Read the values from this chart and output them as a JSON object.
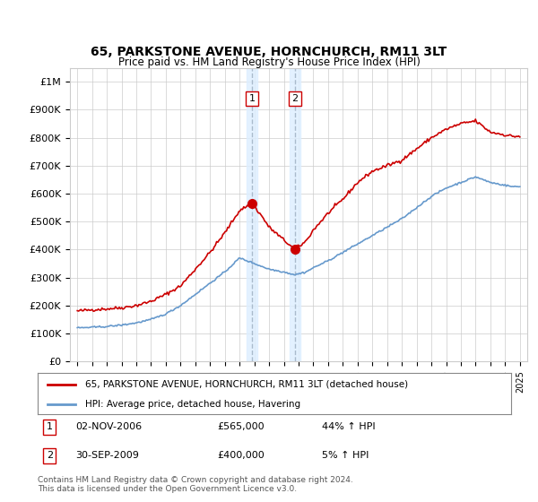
{
  "title": "65, PARKSTONE AVENUE, HORNCHURCH, RM11 3LT",
  "subtitle": "Price paid vs. HM Land Registry's House Price Index (HPI)",
  "ylim": [
    0,
    1050000
  ],
  "yticks": [
    0,
    100000,
    200000,
    300000,
    400000,
    500000,
    600000,
    700000,
    800000,
    900000,
    1000000
  ],
  "ytick_labels": [
    "£0",
    "£100K",
    "£200K",
    "£300K",
    "£400K",
    "£500K",
    "£600K",
    "£700K",
    "£800K",
    "£900K",
    "£1M"
  ],
  "background_color": "#ffffff",
  "grid_color": "#cccccc",
  "sale1_t": 11.83,
  "sale1_value": 565000,
  "sale2_t": 14.75,
  "sale2_value": 400000,
  "marker_color": "#cc0000",
  "hpi_color": "#6699cc",
  "price_color": "#cc0000",
  "shade_color": "#ddeeff",
  "vline_color": "#aabbcc",
  "legend_entries": [
    "65, PARKSTONE AVENUE, HORNCHURCH, RM11 3LT (detached house)",
    "HPI: Average price, detached house, Havering"
  ],
  "annot1_date": "02-NOV-2006",
  "annot1_price": "£565,000",
  "annot1_hpi": "44% ↑ HPI",
  "annot2_date": "30-SEP-2009",
  "annot2_price": "£400,000",
  "annot2_hpi": "5% ↑ HPI",
  "footer": "Contains HM Land Registry data © Crown copyright and database right 2024.\nThis data is licensed under the Open Government Licence v3.0.",
  "start_year": 1995,
  "end_year": 2025,
  "red_key_t": [
    0,
    1,
    2,
    3,
    4,
    5,
    6,
    7,
    8,
    9,
    10,
    11,
    11.83,
    12.5,
    13,
    14.75,
    15.5,
    16,
    17,
    18,
    19,
    20,
    21,
    22,
    23,
    24,
    25,
    26,
    27,
    28,
    29,
    29.5
  ],
  "red_key_v": [
    180000,
    185000,
    188000,
    192000,
    200000,
    215000,
    240000,
    270000,
    330000,
    390000,
    460000,
    540000,
    565000,
    520000,
    480000,
    400000,
    430000,
    470000,
    530000,
    580000,
    640000,
    680000,
    700000,
    720000,
    760000,
    800000,
    830000,
    850000,
    860000,
    820000,
    810000,
    805000
  ],
  "blue_key_t": [
    0,
    1,
    2,
    3,
    4,
    5,
    6,
    7,
    8,
    9,
    10,
    11,
    12,
    13,
    14,
    14.75,
    15.5,
    16,
    17,
    18,
    19,
    20,
    21,
    22,
    23,
    24,
    25,
    26,
    27,
    28,
    29,
    29.5
  ],
  "blue_key_v": [
    120000,
    122000,
    125000,
    130000,
    138000,
    150000,
    170000,
    200000,
    240000,
    280000,
    320000,
    370000,
    350000,
    330000,
    320000,
    310000,
    320000,
    335000,
    360000,
    390000,
    420000,
    450000,
    480000,
    510000,
    550000,
    590000,
    620000,
    640000,
    660000,
    640000,
    630000,
    625000
  ]
}
